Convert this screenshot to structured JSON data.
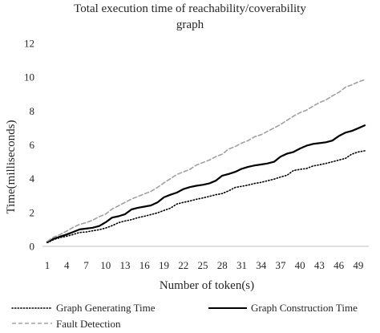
{
  "chart_data": {
    "type": "line",
    "title_lines": [
      "Total execution time of reachability/coverability",
      "graph"
    ],
    "xlabel": "Number of token(s)",
    "ylabel": "Time(milliseconds)",
    "xlim": [
      1,
      50
    ],
    "ylim": [
      0,
      12
    ],
    "x_ticks": [
      1,
      4,
      7,
      10,
      13,
      16,
      19,
      22,
      25,
      28,
      31,
      34,
      37,
      40,
      43,
      46,
      49
    ],
    "x_tick_labels": [
      "1",
      "4",
      "7",
      "10",
      "13",
      "16",
      "19",
      "22",
      "25",
      "28",
      "31",
      "34",
      "37",
      "40",
      "43",
      "46",
      "49"
    ],
    "y_ticks": [
      0,
      2,
      4,
      6,
      8,
      10,
      12
    ],
    "y_tick_labels": [
      "0",
      "2",
      "4",
      "6",
      "8",
      "10",
      "12"
    ],
    "grid": false,
    "legend_position": "bottom",
    "x": [
      1,
      2,
      3,
      4,
      5,
      6,
      7,
      8,
      9,
      10,
      11,
      12,
      13,
      14,
      15,
      16,
      17,
      18,
      19,
      20,
      21,
      22,
      23,
      24,
      25,
      26,
      27,
      28,
      29,
      30,
      31,
      32,
      33,
      34,
      35,
      36,
      37,
      38,
      39,
      40,
      41,
      42,
      43,
      44,
      45,
      46,
      47,
      48,
      49,
      50
    ],
    "series": [
      {
        "name": "Graph Generating Time",
        "style": "dotted",
        "color": "#000000",
        "values": [
          0.22,
          0.4,
          0.52,
          0.6,
          0.7,
          0.82,
          0.85,
          0.92,
          0.98,
          1.08,
          1.22,
          1.4,
          1.5,
          1.58,
          1.7,
          1.78,
          1.88,
          1.98,
          2.12,
          2.26,
          2.5,
          2.6,
          2.68,
          2.78,
          2.86,
          2.95,
          3.05,
          3.12,
          3.28,
          3.48,
          3.55,
          3.62,
          3.72,
          3.78,
          3.88,
          3.97,
          4.1,
          4.2,
          4.48,
          4.55,
          4.6,
          4.75,
          4.82,
          4.9,
          5.0,
          5.1,
          5.2,
          5.45,
          5.58,
          5.65
        ]
      },
      {
        "name": "Graph Construction Time",
        "style": "solid",
        "color": "#000000",
        "values": [
          0.25,
          0.45,
          0.58,
          0.7,
          0.85,
          1.0,
          1.05,
          1.1,
          1.2,
          1.42,
          1.7,
          1.78,
          1.9,
          2.18,
          2.28,
          2.35,
          2.42,
          2.6,
          2.9,
          3.05,
          3.18,
          3.38,
          3.5,
          3.58,
          3.64,
          3.72,
          3.88,
          4.18,
          4.28,
          4.4,
          4.58,
          4.7,
          4.78,
          4.84,
          4.9,
          5.0,
          5.3,
          5.48,
          5.58,
          5.78,
          5.95,
          6.05,
          6.1,
          6.15,
          6.25,
          6.52,
          6.72,
          6.82,
          6.98,
          7.15
        ]
      },
      {
        "name": "Fault Detection",
        "style": "dashed",
        "color": "#a0a0a0",
        "values": [
          0.3,
          0.55,
          0.7,
          0.9,
          1.12,
          1.3,
          1.4,
          1.55,
          1.75,
          1.9,
          2.2,
          2.4,
          2.6,
          2.8,
          2.95,
          3.1,
          3.25,
          3.48,
          3.75,
          4.0,
          4.25,
          4.4,
          4.55,
          4.8,
          4.95,
          5.1,
          5.3,
          5.45,
          5.75,
          5.9,
          6.1,
          6.25,
          6.48,
          6.6,
          6.8,
          7.0,
          7.2,
          7.45,
          7.7,
          7.9,
          8.05,
          8.28,
          8.5,
          8.65,
          8.9,
          9.1,
          9.4,
          9.55,
          9.72,
          9.85
        ]
      }
    ]
  }
}
